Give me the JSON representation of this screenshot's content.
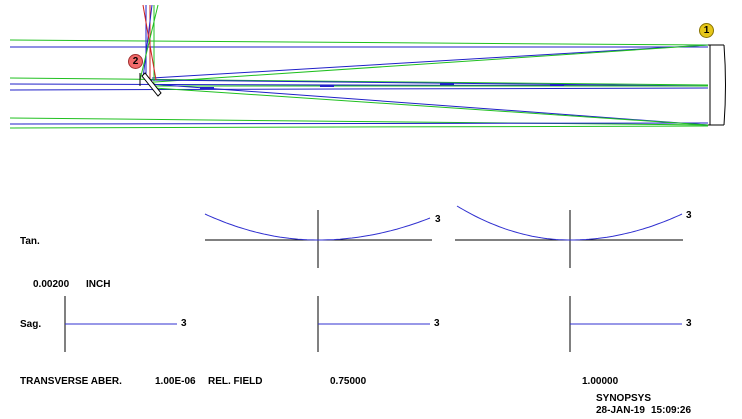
{
  "surface_tags": [
    {
      "number": "1",
      "color": "#e6c619"
    },
    {
      "number": "2",
      "color": "#f26b6b"
    }
  ],
  "plot_labels": {
    "tan": "Tan.",
    "sag": "Sag.",
    "scale_value": "0.00200",
    "scale_unit": "INCH",
    "curve_label": "3"
  },
  "footer": {
    "title": "TRANSVERSE ABER.",
    "wavelength": "1.00E-06",
    "rel_field_label": "REL. FIELD",
    "fields": [
      "0.75000",
      "1.00000"
    ],
    "program": "SYNOPSYS",
    "date": "28-JAN-19",
    "time": "15:09:26"
  },
  "colors": {
    "ray_blue": "#2020c8",
    "ray_green": "#20c020",
    "ray_red": "#d02020",
    "curve": "#3030d0",
    "axis": "#000000",
    "background": "#ffffff"
  }
}
